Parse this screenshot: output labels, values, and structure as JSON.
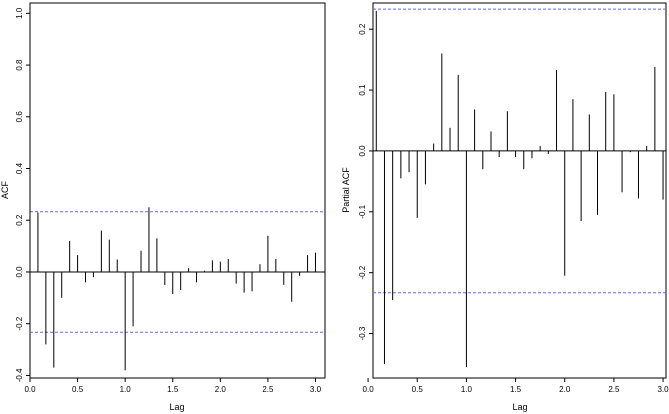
{
  "chart_data": [
    {
      "type": "bar",
      "xlabel": "Lag",
      "ylabel": "ACF",
      "xlim": [
        0,
        3.1
      ],
      "ylim": [
        -0.41,
        1.04
      ],
      "xticks": [
        0.0,
        0.5,
        1.0,
        1.5,
        2.0,
        2.5,
        3.0
      ],
      "xtick_labels": [
        "0.0",
        "0.5",
        "1.0",
        "1.5",
        "2.0",
        "2.5",
        "3.0"
      ],
      "yticks": [
        -0.4,
        -0.2,
        0.0,
        0.2,
        0.4,
        0.6,
        0.8,
        1.0
      ],
      "ytick_labels": [
        "-0.4",
        "-0.2",
        "0.0",
        "0.2",
        "0.4",
        "0.6",
        "0.8",
        "1.0"
      ],
      "confidence_bound": 0.233,
      "confidence_color": "#6666ff",
      "x": [
        0.0,
        0.0833,
        0.1667,
        0.25,
        0.3333,
        0.4167,
        0.5,
        0.5833,
        0.6667,
        0.75,
        0.8333,
        0.9167,
        1.0,
        1.0833,
        1.1667,
        1.25,
        1.3333,
        1.4167,
        1.5,
        1.5833,
        1.6667,
        1.75,
        1.8333,
        1.9167,
        2.0,
        2.0833,
        2.1667,
        2.25,
        2.3333,
        2.4167,
        2.5,
        2.5833,
        2.6667,
        2.75,
        2.8333,
        2.9167,
        3.0
      ],
      "values": [
        1.0,
        0.23,
        -0.28,
        -0.37,
        -0.1,
        0.12,
        0.065,
        -0.04,
        -0.02,
        0.16,
        0.125,
        0.048,
        -0.38,
        -0.21,
        0.082,
        0.25,
        0.13,
        -0.05,
        -0.085,
        -0.07,
        0.015,
        -0.04,
        0.005,
        0.045,
        0.04,
        0.05,
        -0.045,
        -0.08,
        -0.075,
        0.03,
        0.14,
        0.05,
        -0.05,
        -0.115,
        -0.015,
        0.065,
        0.075
      ]
    },
    {
      "type": "bar",
      "xlabel": "Lag",
      "ylabel": "Partial ACF",
      "xlim": [
        0.05,
        3.03
      ],
      "ylim": [
        -0.373,
        0.243
      ],
      "xticks": [
        0.0,
        0.5,
        1.0,
        1.5,
        2.0,
        2.5,
        3.0
      ],
      "xtick_labels": [
        "0.0",
        "0.5",
        "1.0",
        "1.5",
        "2.0",
        "2.5",
        "3.0"
      ],
      "yticks": [
        -0.3,
        -0.2,
        -0.1,
        0.0,
        0.1,
        0.2
      ],
      "ytick_labels": [
        "-0.3",
        "-0.2",
        "-0.1",
        "0.0",
        "0.1",
        "0.2"
      ],
      "confidence_bound": 0.233,
      "confidence_color": "#6666ff",
      "x": [
        0.0833,
        0.1667,
        0.25,
        0.3333,
        0.4167,
        0.5,
        0.5833,
        0.6667,
        0.75,
        0.8333,
        0.9167,
        1.0,
        1.0833,
        1.1667,
        1.25,
        1.3333,
        1.4167,
        1.5,
        1.5833,
        1.6667,
        1.75,
        1.8333,
        1.9167,
        2.0,
        2.0833,
        2.1667,
        2.25,
        2.3333,
        2.4167,
        2.5,
        2.5833,
        2.6667,
        2.75,
        2.8333,
        2.9167,
        3.0
      ],
      "values": [
        0.23,
        -0.35,
        -0.245,
        -0.045,
        -0.035,
        -0.11,
        -0.055,
        0.012,
        0.16,
        0.038,
        0.125,
        -0.355,
        0.068,
        -0.03,
        0.032,
        -0.01,
        0.065,
        -0.01,
        -0.03,
        -0.012,
        0.008,
        -0.005,
        0.133,
        -0.205,
        0.085,
        -0.115,
        0.06,
        -0.105,
        0.097,
        0.093,
        -0.068,
        -0.002,
        -0.078,
        0.008,
        0.138,
        -0.08
      ]
    }
  ]
}
